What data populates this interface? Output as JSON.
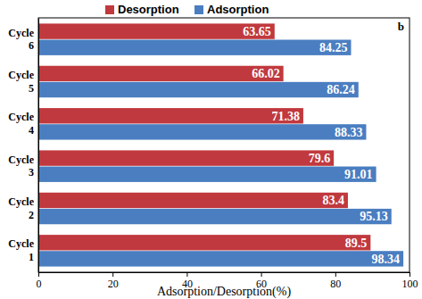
{
  "chart_data": {
    "type": "bar",
    "orientation": "horizontal",
    "x_label": "Adsorption/Desorption(%)",
    "annotations": [
      "b"
    ],
    "categories": [
      "Cycle 1",
      "Cycle 2",
      "Cycle 3",
      "Cycle 4",
      "Cycle 5",
      "Cycle 6"
    ],
    "series": [
      {
        "name": "Desorption",
        "color": "#c0393e",
        "values": [
          89.5,
          83.4,
          79.6,
          71.38,
          66.02,
          63.65
        ]
      },
      {
        "name": "Adsorption",
        "color": "#4a7ec1",
        "values": [
          98.34,
          95.13,
          91.01,
          88.33,
          86.24,
          84.25
        ]
      }
    ],
    "xlim": [
      0,
      100
    ],
    "xticks": [
      0,
      20,
      40,
      60,
      80,
      100
    ],
    "grid": false,
    "legend": "top",
    "data_labels": true
  }
}
